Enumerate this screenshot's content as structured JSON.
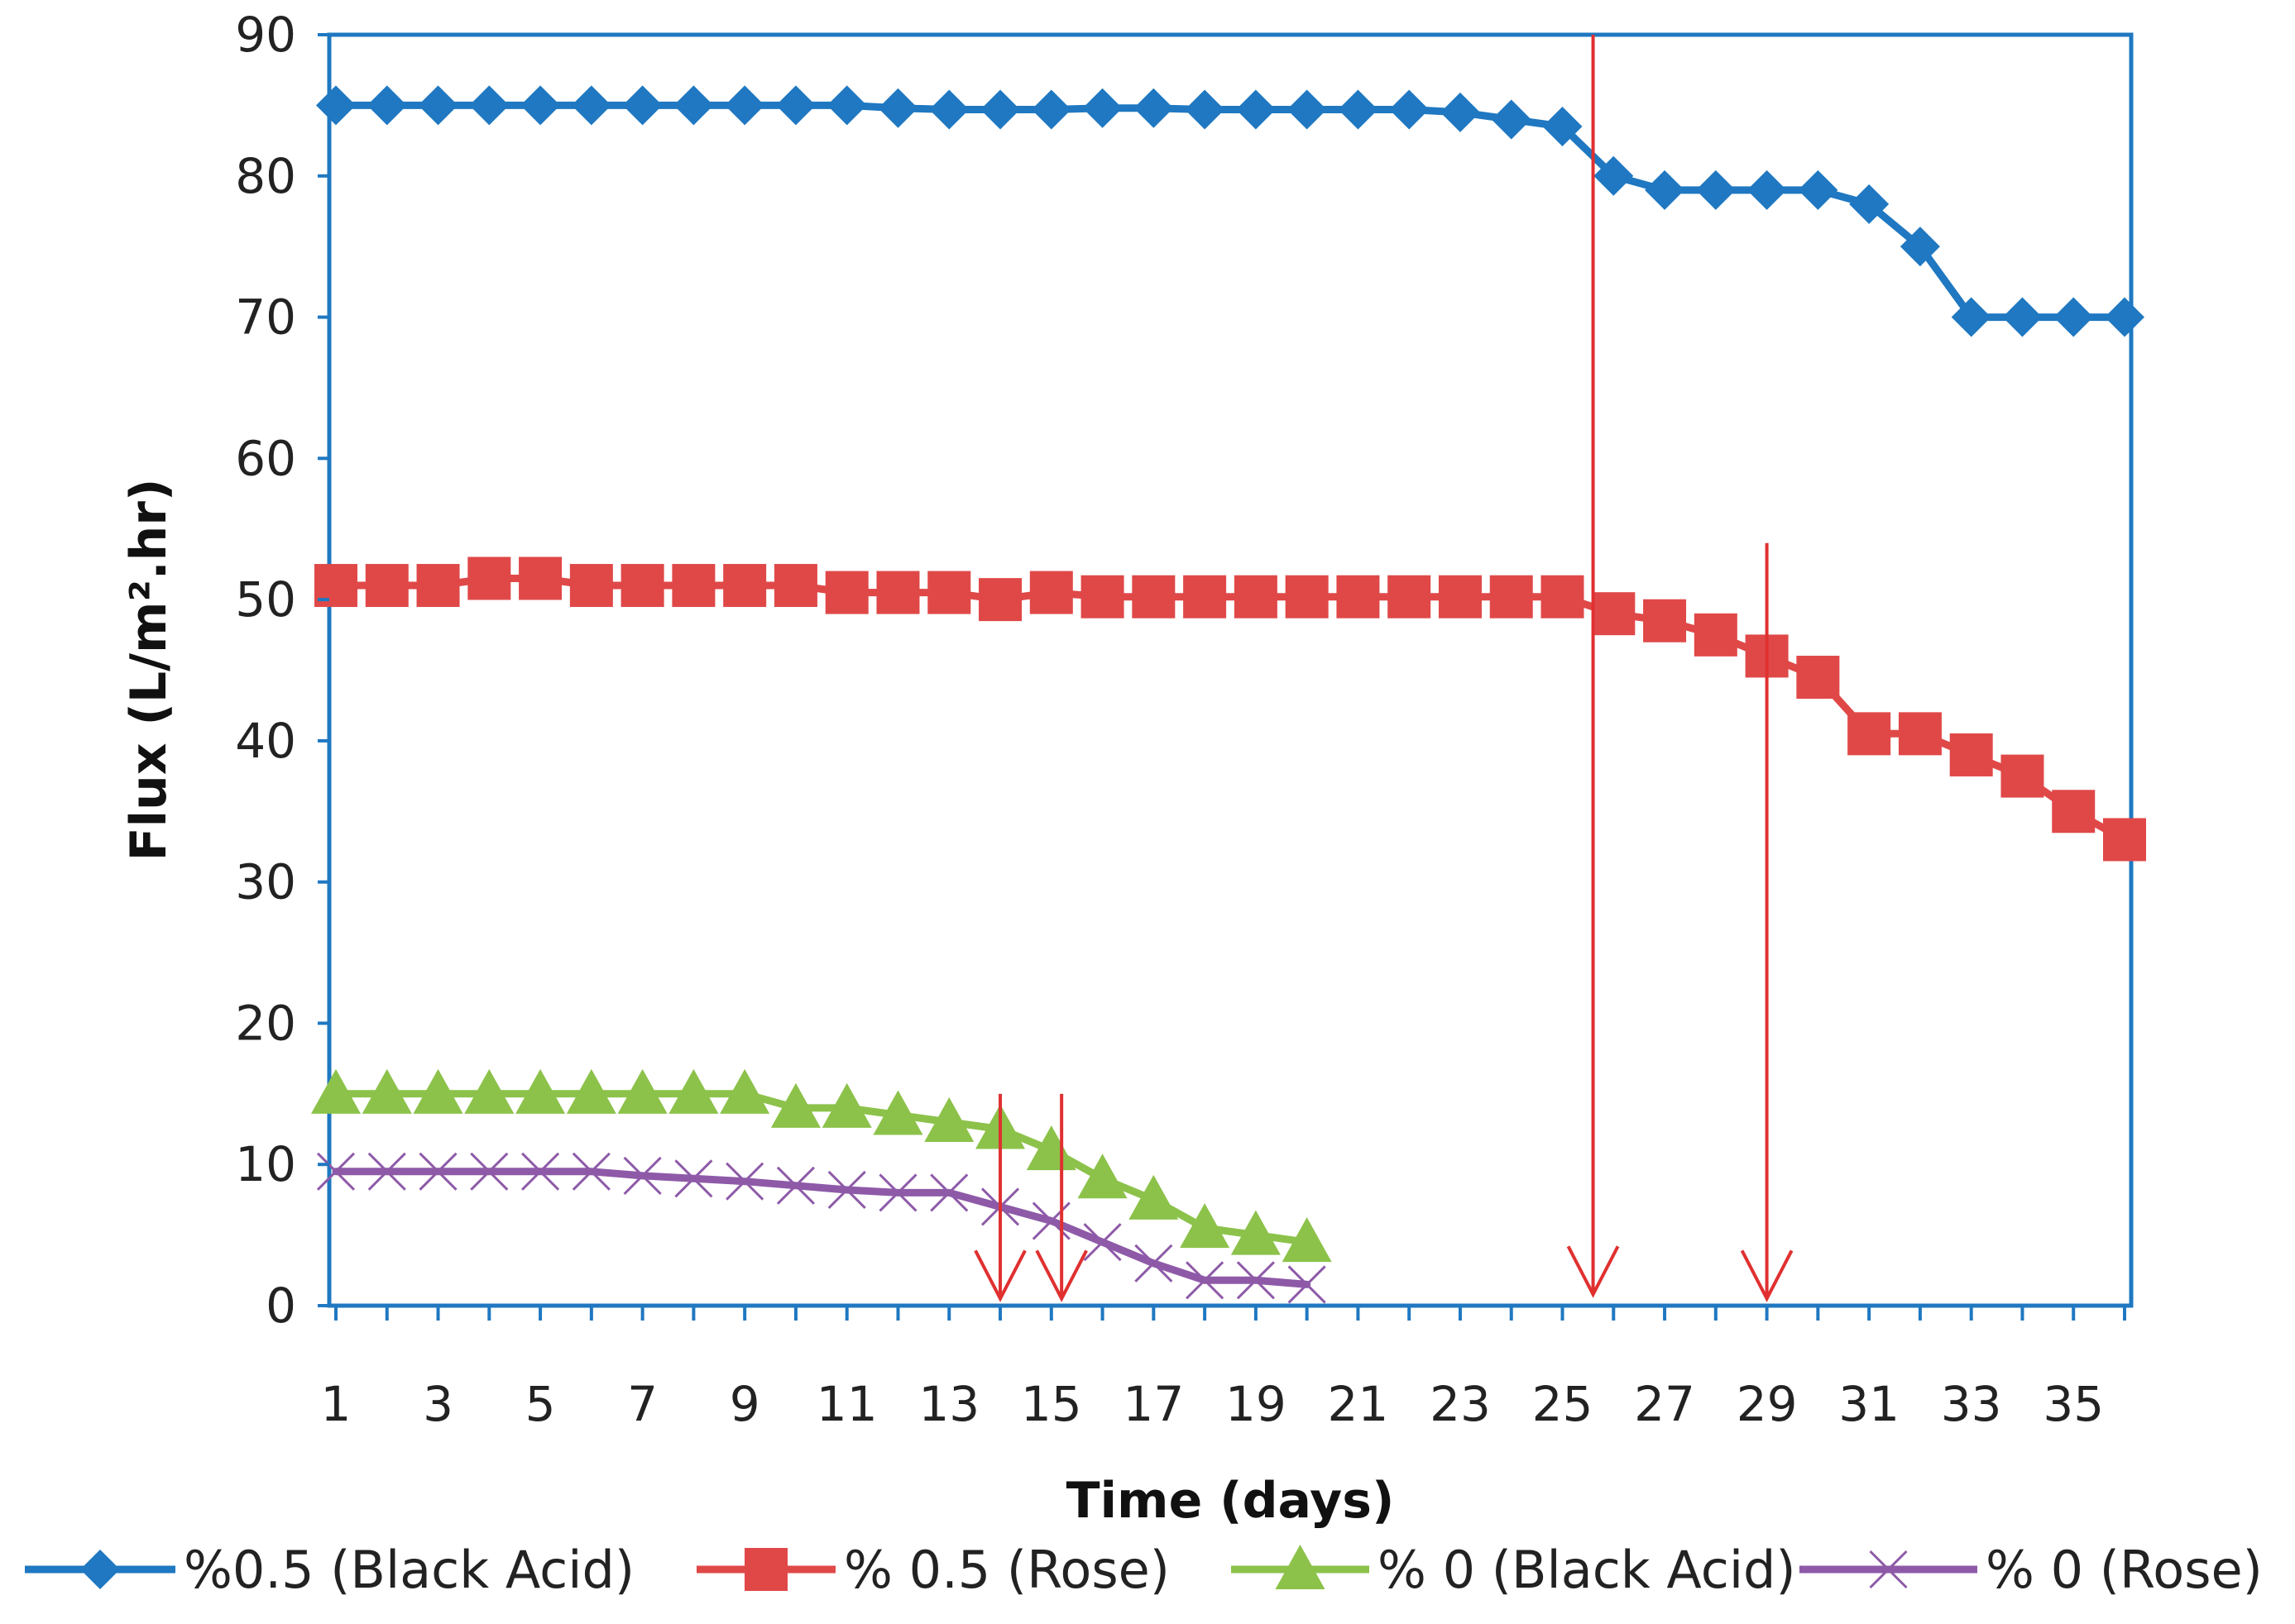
{
  "chart_data": {
    "type": "line",
    "xlabel": "Time (days)",
    "ylabel": "Flux (L/m².hr)",
    "ylim": [
      0,
      90
    ],
    "yticks": [
      0,
      10,
      20,
      30,
      40,
      50,
      60,
      70,
      80,
      90
    ],
    "xticks": [
      1,
      3,
      5,
      7,
      9,
      11,
      13,
      15,
      17,
      19,
      21,
      23,
      25,
      27,
      29,
      31,
      33,
      35
    ],
    "xrange": [
      1,
      36
    ],
    "grid": false,
    "legend_position": "bottom",
    "series": [
      {
        "name": "%0.5 (Black Acid)",
        "color": "#1f78c1",
        "marker": "diamond",
        "x": [
          1,
          2,
          3,
          4,
          5,
          6,
          7,
          8,
          9,
          10,
          11,
          12,
          13,
          14,
          15,
          16,
          17,
          18,
          19,
          20,
          21,
          22,
          23,
          24,
          25,
          26,
          27,
          28,
          29,
          30,
          31,
          32,
          33,
          34,
          35,
          36
        ],
        "values": [
          85,
          85,
          85,
          85,
          85,
          85,
          85,
          85,
          85,
          85,
          85,
          84.8,
          84.7,
          84.7,
          84.7,
          84.8,
          84.8,
          84.7,
          84.7,
          84.7,
          84.7,
          84.7,
          84.5,
          84,
          83.5,
          80,
          79,
          79,
          79,
          79,
          78,
          75,
          70,
          70,
          70,
          70
        ]
      },
      {
        "name": "% 0.5 (Rose)",
        "color": "#e04848",
        "marker": "square",
        "x": [
          1,
          2,
          3,
          4,
          5,
          6,
          7,
          8,
          9,
          10,
          11,
          12,
          13,
          14,
          15,
          16,
          17,
          18,
          19,
          20,
          21,
          22,
          23,
          24,
          25,
          26,
          27,
          28,
          29,
          30,
          31,
          32,
          33,
          34,
          35,
          36
        ],
        "values": [
          51,
          51,
          51,
          51.5,
          51.5,
          51,
          51,
          51,
          51,
          51,
          50.5,
          50.5,
          50.5,
          50,
          50.5,
          50.2,
          50.2,
          50.2,
          50.2,
          50.2,
          50.2,
          50.2,
          50.2,
          50.2,
          50.2,
          49,
          48.5,
          47.5,
          46,
          44.5,
          40.5,
          40.5,
          39,
          37.5,
          35,
          33
        ]
      },
      {
        "name": "% 0 (Black Acid)",
        "color": "#8cc24a",
        "marker": "triangle",
        "x": [
          1,
          2,
          3,
          4,
          5,
          6,
          7,
          8,
          9,
          10,
          11,
          12,
          13,
          14,
          15,
          16,
          17,
          18,
          19,
          20
        ],
        "values": [
          15,
          15,
          15,
          15,
          15,
          15,
          15,
          15,
          15,
          14,
          14,
          13.5,
          13,
          12.5,
          11,
          9,
          7.5,
          5.5,
          5,
          4.5
        ]
      },
      {
        "name": "% 0 (Rose)",
        "color": "#8e5aa8",
        "marker": "x",
        "x": [
          1,
          2,
          3,
          4,
          5,
          6,
          7,
          8,
          9,
          10,
          11,
          12,
          13,
          14,
          15,
          16,
          17,
          18,
          19,
          20
        ],
        "values": [
          9.5,
          9.5,
          9.5,
          9.5,
          9.5,
          9.5,
          9.2,
          9,
          8.8,
          8.5,
          8.2,
          8,
          8,
          7,
          6,
          4.5,
          3,
          1.8,
          1.8,
          1.5
        ]
      }
    ],
    "annotations": [
      {
        "type": "down-arrow",
        "x": 14,
        "from_y": 15,
        "to_y": 0.5,
        "color": "#e03030"
      },
      {
        "type": "down-arrow",
        "x": 15.2,
        "from_y": 15,
        "to_y": 0.5,
        "color": "#e03030"
      },
      {
        "type": "down-arrow",
        "x": 25.6,
        "from_y": 90,
        "to_y": 0.8,
        "color": "#e03030"
      },
      {
        "type": "down-arrow",
        "x": 29,
        "from_y": 54,
        "to_y": 0.5,
        "color": "#e03030"
      }
    ]
  }
}
